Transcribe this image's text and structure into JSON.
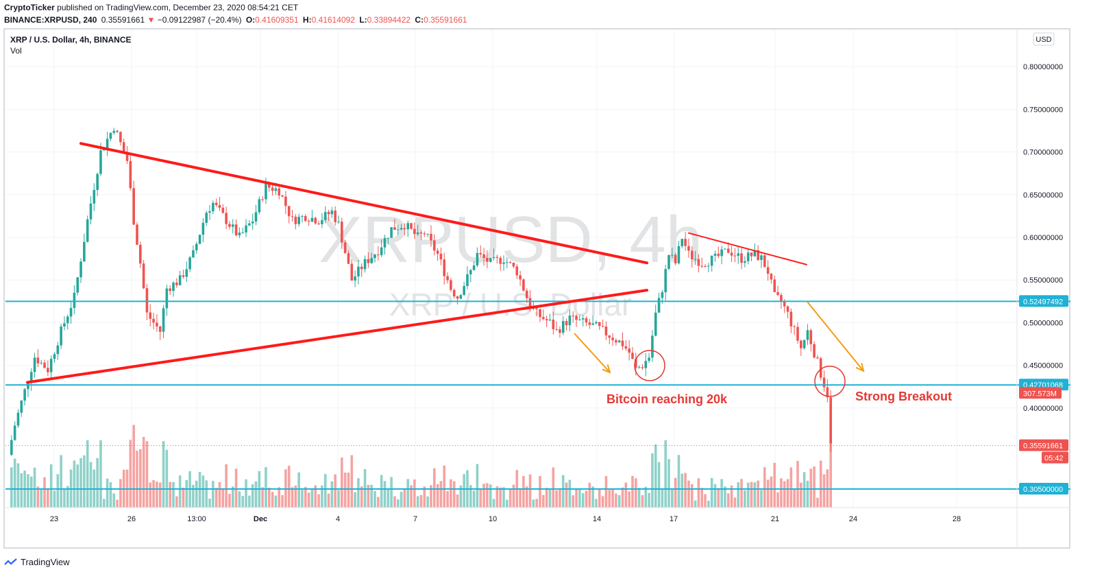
{
  "header": {
    "publisher": "CryptoTicker",
    "published_text": "published on TradingView.com, December 23, 2020 08:54:21 CET",
    "symbol": "BINANCE:XRPUSD, 240",
    "last": "0.35591661",
    "change_arrow": "▼",
    "change": "−0.09122987 (−20.4%)",
    "o_label": "O:",
    "o_value": "0.41609351",
    "h_label": "H:",
    "h_value": "0.41614092",
    "l_label": "L:",
    "l_value": "0.33894422",
    "c_label": "C:",
    "c_value": "0.35591661"
  },
  "legend": {
    "title": "XRP / U.S. Dollar, 4h, BINANCE",
    "vol": "Vol"
  },
  "currency_button": "USD",
  "watermark": {
    "main": "XRPUSD, 4h",
    "sub": "XRP / U.S. Dollar"
  },
  "footer": {
    "brand": "TradingView"
  },
  "colors": {
    "up": "#26a69a",
    "down": "#ef5350",
    "up_vol": "#8fd1c9",
    "down_vol": "#f5a3a1",
    "trend": "#ff1a1a",
    "hline": "#1fb2d4",
    "arrow": "#f39c12",
    "annotation": "#e53935"
  },
  "chart_data": {
    "type": "candlestick",
    "symbol": "XRPUSD",
    "interval": "4h",
    "x_ticks": [
      "23",
      "26",
      "13:00",
      "Dec",
      "4",
      "7",
      "10",
      "14",
      "17",
      "21",
      "24",
      "28"
    ],
    "y_ticks": [
      "0.80000000",
      "0.75000000",
      "0.70000000",
      "0.65000000",
      "0.60000000",
      "0.55000000",
      "0.50000000",
      "0.45000000",
      "0.40000000"
    ],
    "ylim": [
      0.3,
      0.82
    ],
    "horizontal_levels": [
      {
        "value": 0.52497492,
        "label": "0.52497492"
      },
      {
        "value": 0.42701068,
        "label": "0.42701068"
      },
      {
        "value": 0.305,
        "label": "0.30500000"
      }
    ],
    "price_label": {
      "value": 0.35591661,
      "label": "0.35591661",
      "countdown": "05:42"
    },
    "volume_label": "307.573M",
    "annotations": [
      {
        "text": "Bitcoin reaching 20k"
      },
      {
        "text": "Strong Breakout"
      }
    ],
    "trendlines": [
      {
        "name": "upper",
        "from": 0.71,
        "to": 0.57
      },
      {
        "name": "lower",
        "from": 0.43,
        "to": 0.538
      },
      {
        "name": "minor",
        "from": 0.605,
        "to": 0.568
      }
    ],
    "keypoints": [
      [
        0,
        0.345
      ],
      [
        2,
        0.38
      ],
      [
        5,
        0.42
      ],
      [
        8,
        0.46
      ],
      [
        12,
        0.445
      ],
      [
        16,
        0.49
      ],
      [
        20,
        0.53
      ],
      [
        24,
        0.62
      ],
      [
        28,
        0.7
      ],
      [
        32,
        0.73
      ],
      [
        34,
        0.71
      ],
      [
        36,
        0.69
      ],
      [
        38,
        0.62
      ],
      [
        40,
        0.57
      ],
      [
        42,
        0.51
      ],
      [
        44,
        0.5
      ],
      [
        46,
        0.49
      ],
      [
        48,
        0.54
      ],
      [
        52,
        0.55
      ],
      [
        56,
        0.58
      ],
      [
        60,
        0.63
      ],
      [
        62,
        0.64
      ],
      [
        66,
        0.62
      ],
      [
        70,
        0.6
      ],
      [
        74,
        0.62
      ],
      [
        78,
        0.66
      ],
      [
        82,
        0.655
      ],
      [
        86,
        0.62
      ],
      [
        90,
        0.625
      ],
      [
        94,
        0.62
      ],
      [
        98,
        0.63
      ],
      [
        100,
        0.615
      ],
      [
        104,
        0.55
      ],
      [
        108,
        0.57
      ],
      [
        112,
        0.585
      ],
      [
        116,
        0.61
      ],
      [
        120,
        0.615
      ],
      [
        124,
        0.6
      ],
      [
        126,
        0.605
      ],
      [
        130,
        0.58
      ],
      [
        134,
        0.54
      ],
      [
        136,
        0.53
      ],
      [
        140,
        0.56
      ],
      [
        142,
        0.58
      ],
      [
        146,
        0.57
      ],
      [
        150,
        0.575
      ],
      [
        154,
        0.56
      ],
      [
        158,
        0.52
      ],
      [
        160,
        0.51
      ],
      [
        162,
        0.505
      ],
      [
        164,
        0.5
      ],
      [
        166,
        0.49
      ],
      [
        170,
        0.505
      ],
      [
        174,
        0.5
      ],
      [
        178,
        0.495
      ],
      [
        182,
        0.485
      ],
      [
        186,
        0.475
      ],
      [
        188,
        0.465
      ],
      [
        190,
        0.445
      ],
      [
        192,
        0.45
      ],
      [
        194,
        0.46
      ],
      [
        196,
        0.51
      ],
      [
        198,
        0.54
      ],
      [
        200,
        0.58
      ],
      [
        202,
        0.57
      ],
      [
        204,
        0.6
      ],
      [
        206,
        0.58
      ],
      [
        210,
        0.57
      ],
      [
        214,
        0.575
      ],
      [
        218,
        0.585
      ],
      [
        222,
        0.575
      ],
      [
        226,
        0.58
      ],
      [
        228,
        0.575
      ],
      [
        230,
        0.56
      ],
      [
        232,
        0.53
      ],
      [
        234,
        0.525
      ],
      [
        236,
        0.51
      ],
      [
        238,
        0.49
      ],
      [
        240,
        0.47
      ],
      [
        242,
        0.49
      ],
      [
        244,
        0.465
      ],
      [
        246,
        0.44
      ],
      [
        248,
        0.416
      ],
      [
        249,
        0.356
      ]
    ]
  }
}
